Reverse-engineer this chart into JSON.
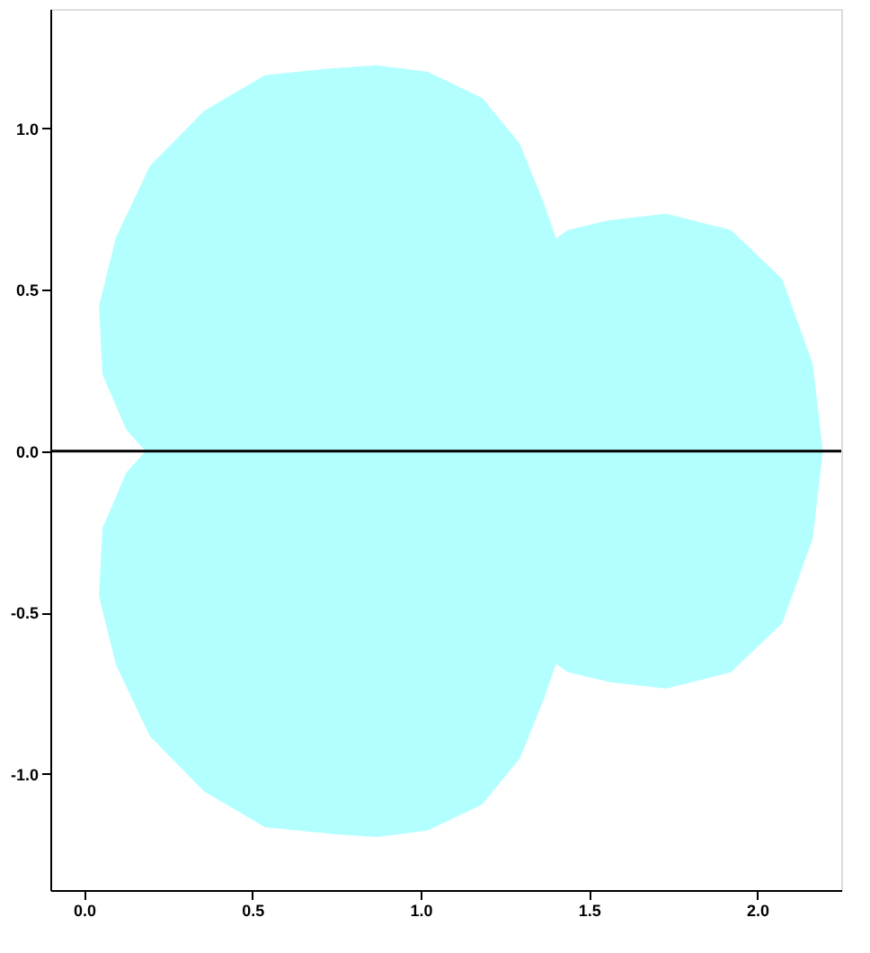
{
  "chart_data": {
    "type": "area",
    "grid": false,
    "xlim": [
      -0.1,
      2.25
    ],
    "ylim": [
      -1.36,
      1.37
    ],
    "xticks": [
      {
        "value": 0,
        "label": "0.0"
      },
      {
        "value": 0.5,
        "label": "0.5"
      },
      {
        "value": 1,
        "label": "1.0"
      },
      {
        "value": 1.5,
        "label": "1.5"
      },
      {
        "value": 2,
        "label": "2.0"
      }
    ],
    "yticks": [
      {
        "value": -1,
        "label": "-1.0"
      },
      {
        "value": -0.5,
        "label": "-0.5"
      },
      {
        "value": 0,
        "label": "0.0"
      },
      {
        "value": 0.5,
        "label": "0.5"
      },
      {
        "value": 1,
        "label": "1.0"
      }
    ],
    "ref_lines": [
      {
        "axis": "y",
        "value": 0,
        "color": "#000000"
      }
    ],
    "series": [
      {
        "color": "#b3ffff",
        "x": [
          2.19,
          2.16,
          2.07,
          1.92,
          1.73,
          1.56,
          1.44,
          1.4,
          1.36,
          1.29,
          1.18,
          1.02,
          0.87,
          0.73,
          0.54,
          0.36,
          0.2,
          0.1,
          0.05,
          0.06,
          0.13,
          0.19,
          0.13,
          0.06,
          0.05,
          0.1,
          0.2,
          0.36,
          0.54,
          0.73,
          0.87,
          1.02,
          1.18,
          1.29,
          1.36,
          1.4,
          1.44,
          1.56,
          1.73,
          1.92,
          2.07,
          2.16,
          2.19
        ],
        "values": [
          0,
          0.27,
          0.53,
          0.68,
          0.73,
          0.71,
          0.68,
          0.65,
          0.77,
          0.95,
          1.09,
          1.17,
          1.19,
          1.18,
          1.16,
          1.05,
          0.88,
          0.66,
          0.45,
          0.24,
          0.07,
          0,
          -0.07,
          -0.24,
          -0.45,
          -0.66,
          -0.88,
          -1.05,
          -1.16,
          -1.18,
          -1.19,
          -1.17,
          -1.09,
          -0.95,
          -0.77,
          -0.65,
          -0.68,
          -0.71,
          -0.73,
          -0.68,
          -0.53,
          -0.27,
          0
        ]
      }
    ]
  }
}
